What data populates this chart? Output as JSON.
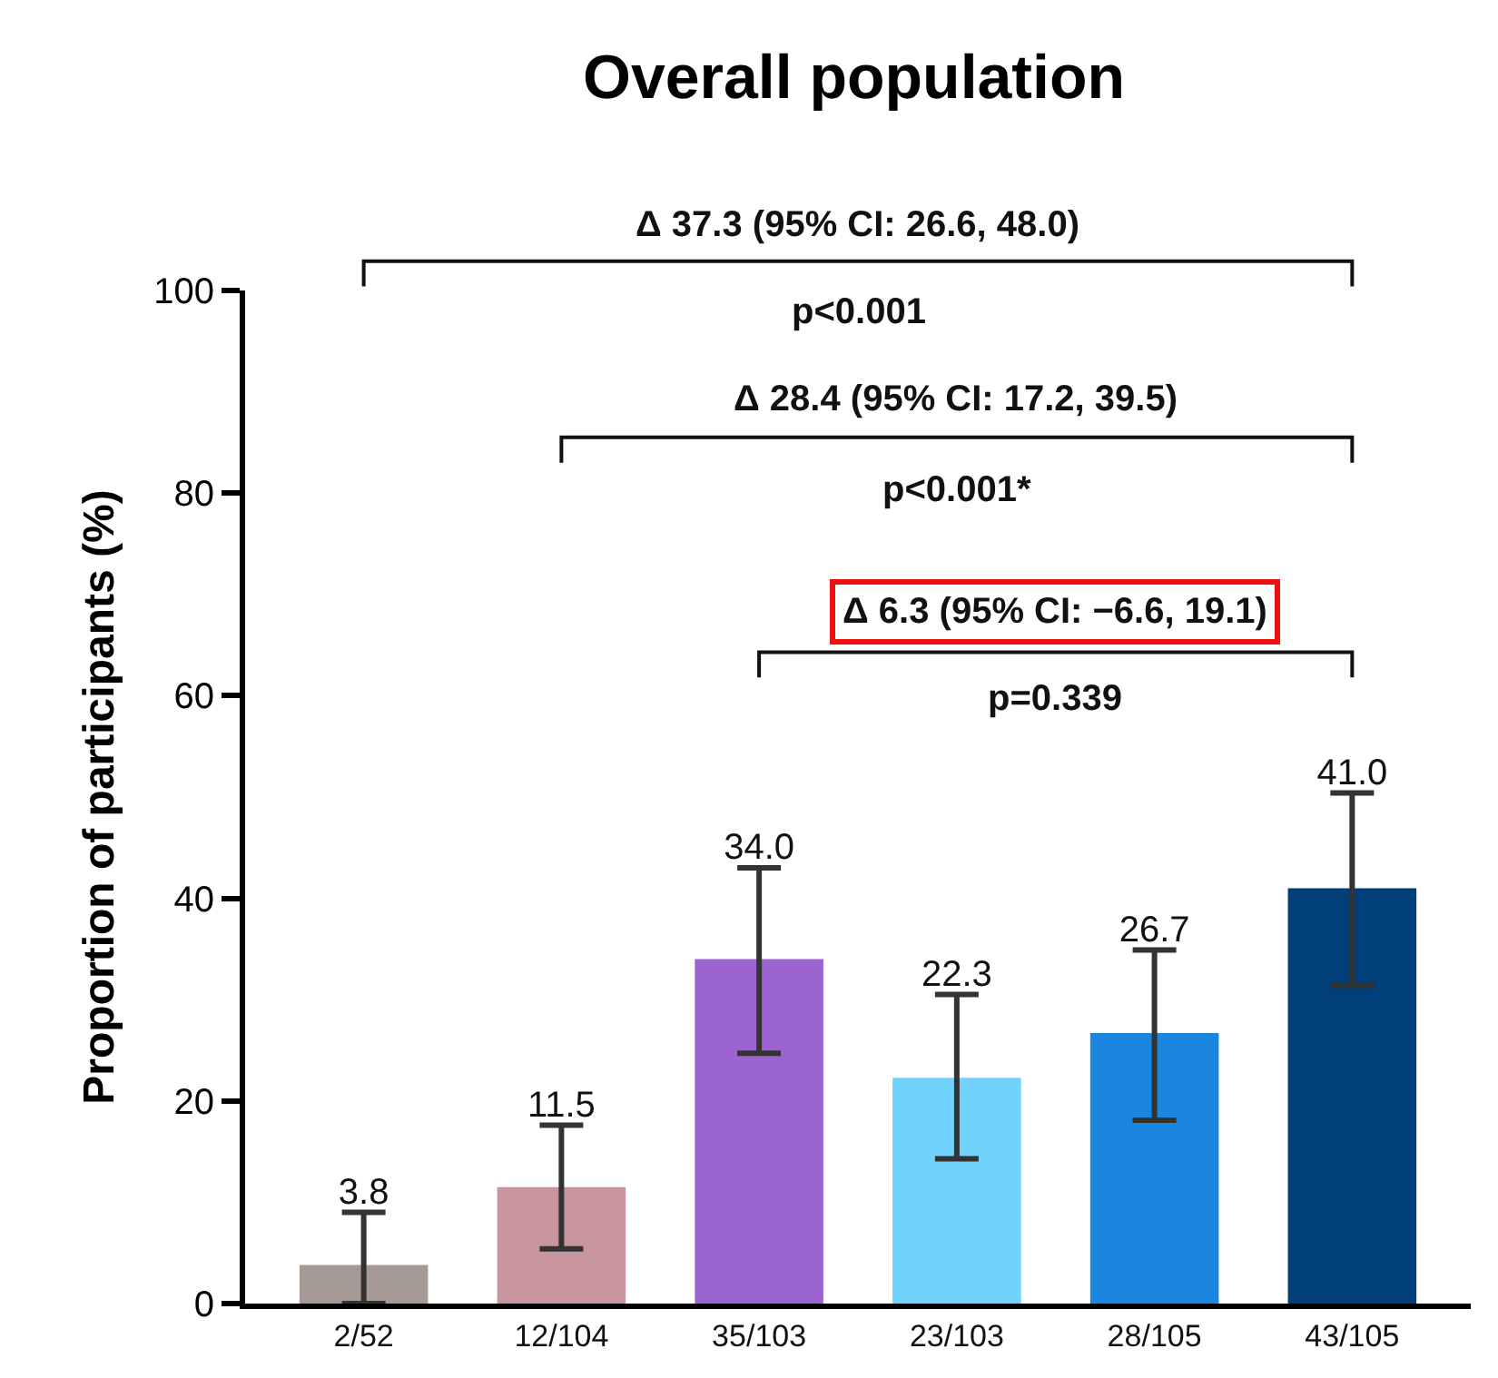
{
  "chart_data": {
    "type": "bar",
    "title": "Overall population",
    "ylabel": "Proportion of participants (%)",
    "categories": [
      "2/52",
      "12/104",
      "35/103",
      "23/103",
      "28/105",
      "43/105"
    ],
    "values": [
      3.8,
      11.5,
      34.0,
      22.3,
      26.7,
      41.0
    ],
    "colors": [
      "#a59a96",
      "#c8959c",
      "#9b64d0",
      "#6fd3fd",
      "#1a86e0",
      "#003f7a"
    ],
    "errors": [
      [
        0.0,
        9.0
      ],
      [
        5.4,
        17.6
      ],
      [
        24.7,
        43.0
      ],
      [
        14.3,
        30.5
      ],
      [
        18.1,
        34.9
      ],
      [
        31.4,
        50.4
      ]
    ],
    "value_labels": [
      "3.8",
      "11.5",
      "34.0",
      "22.3",
      "26.7",
      "41.0"
    ],
    "ylim": [
      0,
      100
    ],
    "yticks": [
      0,
      20,
      40,
      60,
      80,
      100
    ],
    "annotations": [
      "Δ 37.3 (95% CI: 26.6, 48.0)",
      "p<0.001",
      "Δ 28.4 (95% CI: 17.2, 39.5)",
      "p<0.001*",
      "Δ 6.3 (95% CI: −6.6, 19.1)",
      "p=0.339"
    ]
  }
}
